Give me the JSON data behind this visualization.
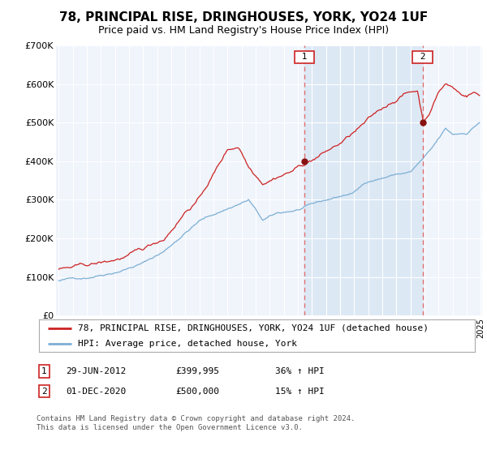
{
  "title": "78, PRINCIPAL RISE, DRINGHOUSES, YORK, YO24 1UF",
  "subtitle": "Price paid vs. HM Land Registry's House Price Index (HPI)",
  "ylim": [
    0,
    700000
  ],
  "yticks": [
    0,
    100000,
    200000,
    300000,
    400000,
    500000,
    600000,
    700000
  ],
  "ytick_labels": [
    "£0",
    "£100K",
    "£200K",
    "£300K",
    "£400K",
    "£500K",
    "£600K",
    "£700K"
  ],
  "hpi_color": "#7bafd4",
  "price_color": "#cc2222",
  "marker_color": "#881111",
  "vline_color": "#e07070",
  "shade_color": "#dde8f5",
  "background_color": "#f0f4fb",
  "grid_color": "#ffffff",
  "sale1_year": 2012,
  "sale1_month": 6,
  "sale1_price": 399995,
  "sale2_year": 2020,
  "sale2_month": 11,
  "sale2_price": 500000,
  "legend_line1": "78, PRINCIPAL RISE, DRINGHOUSES, YORK, YO24 1UF (detached house)",
  "legend_line2": "HPI: Average price, detached house, York",
  "table_row1": [
    "1",
    "29-JUN-2012",
    "£399,995",
    "36% ↑ HPI"
  ],
  "table_row2": [
    "2",
    "01-DEC-2020",
    "£500,000",
    "15% ↑ HPI"
  ],
  "footnote": "Contains HM Land Registry data © Crown copyright and database right 2024.\nThis data is licensed under the Open Government Licence v3.0.",
  "title_fontsize": 11,
  "subtitle_fontsize": 9,
  "tick_fontsize": 8,
  "legend_fontsize": 8
}
